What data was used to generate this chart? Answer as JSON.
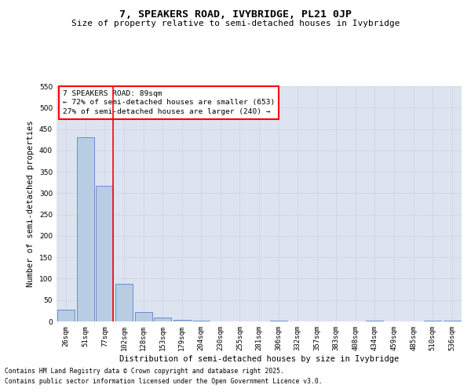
{
  "title": "7, SPEAKERS ROAD, IVYBRIDGE, PL21 0JP",
  "subtitle": "Size of property relative to semi-detached houses in Ivybridge",
  "xlabel": "Distribution of semi-detached houses by size in Ivybridge",
  "ylabel": "Number of semi-detached properties",
  "categories": [
    "26sqm",
    "51sqm",
    "77sqm",
    "102sqm",
    "128sqm",
    "153sqm",
    "179sqm",
    "204sqm",
    "230sqm",
    "255sqm",
    "281sqm",
    "306sqm",
    "332sqm",
    "357sqm",
    "383sqm",
    "408sqm",
    "434sqm",
    "459sqm",
    "485sqm",
    "510sqm",
    "536sqm"
  ],
  "values": [
    28,
    430,
    318,
    88,
    22,
    10,
    4,
    1,
    0,
    0,
    0,
    2,
    0,
    0,
    0,
    0,
    1,
    0,
    0,
    1,
    2
  ],
  "bar_color": "#b8cce4",
  "bar_edge_color": "#4472c4",
  "grid_color": "#d0d8e8",
  "background_color": "#dde4f0",
  "property_line_x": 2,
  "property_size": "89sqm",
  "pct_smaller": 72,
  "count_smaller": 653,
  "pct_larger": 27,
  "count_larger": 240,
  "annotation_text_line1": "7 SPEAKERS ROAD: 89sqm",
  "annotation_text_line2": "← 72% of semi-detached houses are smaller (653)",
  "annotation_text_line3": "27% of semi-detached houses are larger (240) →",
  "ylim": [
    0,
    550
  ],
  "yticks": [
    0,
    50,
    100,
    150,
    200,
    250,
    300,
    350,
    400,
    450,
    500,
    550
  ],
  "footnote1": "Contains HM Land Registry data © Crown copyright and database right 2025.",
  "footnote2": "Contains public sector information licensed under the Open Government Licence v3.0.",
  "title_fontsize": 9.5,
  "subtitle_fontsize": 8,
  "label_fontsize": 7.5,
  "tick_fontsize": 6.5,
  "annotation_fontsize": 6.8,
  "footnote_fontsize": 5.8
}
